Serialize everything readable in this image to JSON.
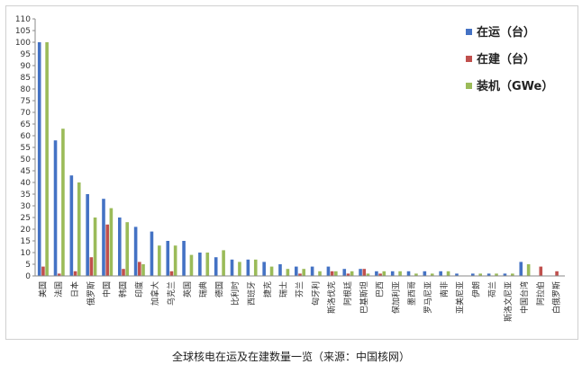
{
  "caption": "全球核电在运及在建数量一览（来源：中国核网）",
  "chart_data": {
    "type": "bar",
    "title": "",
    "xlabel": "",
    "ylabel": "",
    "ylim": [
      0,
      110
    ],
    "yticks": [
      0,
      5,
      10,
      15,
      20,
      25,
      30,
      35,
      40,
      45,
      50,
      55,
      60,
      65,
      70,
      75,
      80,
      85,
      90,
      95,
      100,
      105,
      110
    ],
    "grid": false,
    "legend_position": "top-right",
    "categories": [
      "美国",
      "法国",
      "日本",
      "俄罗斯",
      "中国",
      "韩国",
      "印度",
      "加拿大",
      "乌克兰",
      "英国",
      "瑞典",
      "德国",
      "比利时",
      "西班牙",
      "捷克",
      "瑞士",
      "芬兰",
      "匈牙利",
      "斯洛伐克",
      "阿根廷",
      "巴基斯坦",
      "巴西",
      "保加利亚",
      "墨西哥",
      "罗马尼亚",
      "南非",
      "亚美尼亚",
      "伊朗",
      "荷兰",
      "斯洛文尼亚",
      "中国台湾",
      "阿拉伯",
      "白俄罗斯"
    ],
    "series": [
      {
        "name": "在运（台）",
        "color": "#4472c4",
        "values": [
          100,
          58,
          43,
          35,
          33,
          25,
          21,
          19,
          15,
          15,
          10,
          8,
          7,
          7,
          6,
          5,
          4,
          4,
          4,
          3,
          3,
          2,
          2,
          2,
          2,
          2,
          1,
          1,
          1,
          1,
          6,
          0,
          0
        ]
      },
      {
        "name": "在建（台）",
        "color": "#c0504d",
        "values": [
          4,
          1,
          2,
          8,
          22,
          3,
          6,
          0,
          2,
          0,
          0,
          0,
          0,
          0,
          0,
          0,
          1,
          0,
          2,
          1,
          3,
          1,
          0,
          0,
          0,
          0,
          0,
          0,
          0,
          0,
          0,
          4,
          2
        ]
      },
      {
        "name": "装机（GWe）",
        "color": "#9bbb59",
        "values": [
          100,
          63,
          40,
          25,
          29,
          23,
          5,
          13,
          13,
          9,
          10,
          11,
          6,
          7,
          4,
          3,
          3,
          2,
          2,
          2,
          1,
          2,
          2,
          1,
          1,
          2,
          0,
          1,
          1,
          1,
          5,
          0,
          0
        ]
      }
    ]
  }
}
